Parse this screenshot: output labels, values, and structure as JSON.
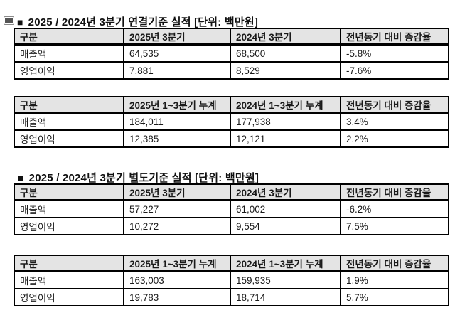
{
  "colors": {
    "header_bg": "#e4e4e4",
    "border": "#000000",
    "text": "#1a1a1a",
    "background": "#ffffff"
  },
  "icons": {
    "table_grid_icon": "2x2-grid"
  },
  "sections": [
    {
      "title": {
        "bullet": "■",
        "text": "2025 / 2024년 3분기 연결기준 실적 [단위: 백만원]"
      },
      "tables": [
        {
          "headers": [
            "구분",
            "2025년 3분기",
            "2024년 3분기",
            "전년동기 대비 증감율"
          ],
          "rows": [
            [
              "매출액",
              "64,535",
              "68,500",
              "-5.8%"
            ],
            [
              "영업이익",
              "7,881",
              "8,529",
              "-7.6%"
            ]
          ]
        },
        {
          "headers": [
            "구분",
            "2025년 1~3분기 누계",
            "2024년 1~3분기 누계",
            "전년동기 대비 증감율"
          ],
          "rows": [
            [
              "매출액",
              "184,011",
              "177,938",
              "3.4%"
            ],
            [
              "영업이익",
              "12,385",
              "12,121",
              "2.2%"
            ]
          ]
        }
      ]
    },
    {
      "title": {
        "bullet": "■",
        "text": "2025 / 2024년 3분기 별도기준 실적 [단위: 백만원]"
      },
      "tables": [
        {
          "headers": [
            "구분",
            "2025년 3분기",
            "2024년 3분기",
            "전년동기 대비 증감율"
          ],
          "rows": [
            [
              "매출액",
              "57,227",
              "61,002",
              "-6.2%"
            ],
            [
              "영업이익",
              "10,272",
              "9,554",
              "7.5%"
            ]
          ]
        },
        {
          "headers": [
            "구분",
            "2025년 1~3분기 누계",
            "2024년 1~3분기 누계",
            "전년동기 대비 증감율"
          ],
          "rows": [
            [
              "매출액",
              "163,003",
              "159,935",
              "1.9%"
            ],
            [
              "영업이익",
              "19,783",
              "18,714",
              "5.7%"
            ]
          ]
        }
      ]
    }
  ]
}
